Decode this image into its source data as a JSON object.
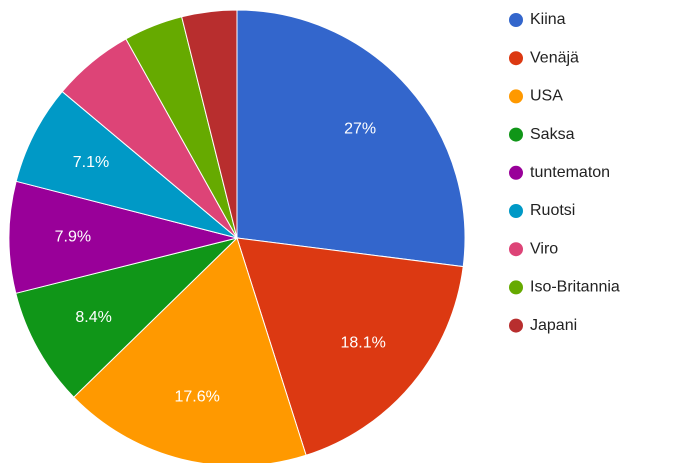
{
  "chart_data": {
    "type": "pie",
    "categories": [
      "Kiina",
      "Venäjä",
      "USA",
      "Saksa",
      "tuntematon",
      "Ruotsi",
      "Viro",
      "Iso-Britannia",
      "Japani"
    ],
    "values": [
      27,
      18.1,
      17.6,
      8.4,
      7.9,
      7.1,
      5.8,
      4.2,
      3.9
    ],
    "value_labels": [
      "27%",
      "18.1%",
      "17.6%",
      "8.4%",
      "7.9%",
      "7.1%",
      null,
      null,
      null
    ],
    "colors": [
      "#3366cc",
      "#dc3912",
      "#ff9900",
      "#109618",
      "#990099",
      "#0099c6",
      "#dd4477",
      "#66aa00",
      "#b82e2e"
    ],
    "legend": "right"
  }
}
